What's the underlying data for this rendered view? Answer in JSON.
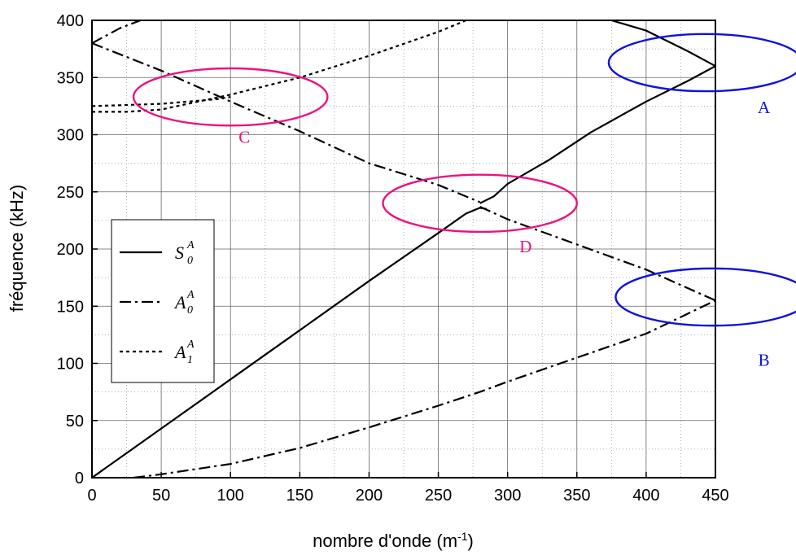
{
  "chart_data": {
    "type": "line",
    "xlabel_main": "nombre d'onde (m",
    "xlabel_sup": "-1",
    "xlabel_end": ")",
    "ylabel": "fréquence (kHz)",
    "xlim": [
      0,
      450
    ],
    "ylim": [
      0,
      400
    ],
    "xticks": [
      "0",
      "50",
      "100",
      "150",
      "200",
      "250",
      "300",
      "350",
      "400",
      "450"
    ],
    "yticks": [
      "0",
      "50",
      "100",
      "150",
      "200",
      "250",
      "300",
      "350",
      "400"
    ],
    "grid": true,
    "legend_position": "left-middle",
    "series": [
      {
        "id": "S0",
        "style": "solid",
        "legend": {
          "base": "S",
          "sub": "0",
          "sup": "A"
        },
        "segments": [
          [
            [
              0,
              0
            ],
            [
              50,
              43
            ],
            [
              100,
              86
            ],
            [
              150,
              129
            ],
            [
              200,
              172
            ],
            [
              250,
              214
            ],
            [
              270,
              231
            ],
            [
              280,
              236
            ],
            [
              285,
              235
            ]
          ],
          [
            [
              280,
              240
            ],
            [
              290,
              246
            ],
            [
              300,
              257
            ],
            [
              330,
              278
            ],
            [
              360,
              302
            ],
            [
              400,
              329
            ],
            [
              430,
              347
            ],
            [
              450,
              360
            ]
          ],
          [
            [
              375,
              400
            ],
            [
              400,
              391
            ],
            [
              430,
              373
            ],
            [
              450,
              360
            ]
          ]
        ]
      },
      {
        "id": "A0",
        "style": "dashdot",
        "legend": {
          "base": "A",
          "sub": "0",
          "sup": "A"
        },
        "segments": [
          [
            [
              30,
              0
            ],
            [
              50,
              3
            ],
            [
              100,
              12
            ],
            [
              150,
              26
            ],
            [
              200,
              44
            ],
            [
              250,
              63
            ],
            [
              280,
              75
            ],
            [
              300,
              84
            ],
            [
              350,
              105
            ],
            [
              400,
              126
            ],
            [
              450,
              155
            ]
          ],
          [
            [
              0,
              380
            ],
            [
              50,
              356
            ],
            [
              100,
              329
            ],
            [
              150,
              303
            ],
            [
              200,
              275
            ],
            [
              250,
              256
            ],
            [
              280,
              241
            ]
          ],
          [
            [
              280,
              237
            ],
            [
              300,
              226
            ],
            [
              350,
              204
            ],
            [
              400,
              182
            ],
            [
              450,
              155
            ]
          ],
          [
            [
              0,
              380
            ],
            [
              20,
              393
            ],
            [
              35,
              400
            ]
          ]
        ]
      },
      {
        "id": "A1",
        "style": "dotted",
        "legend": {
          "base": "A",
          "sub": "1",
          "sup": "A"
        },
        "segments": [
          [
            [
              0,
              325
            ],
            [
              50,
              327
            ],
            [
              90,
              331
            ],
            [
              100,
              333
            ]
          ],
          [
            [
              0,
              320
            ],
            [
              25,
              320
            ],
            [
              50,
              322
            ],
            [
              100,
              335
            ],
            [
              150,
              350
            ],
            [
              200,
              369
            ],
            [
              250,
              390
            ],
            [
              270,
              400
            ]
          ]
        ]
      }
    ],
    "annotations": [
      {
        "label": "A",
        "color": "#1010e0",
        "cx": 443,
        "cy": 363,
        "rx": 70,
        "ry": 25,
        "lx": 485,
        "ly": 319
      },
      {
        "label": "B",
        "color": "#1010e0",
        "cx": 448,
        "cy": 158,
        "rx": 70,
        "ry": 25,
        "lx": 485,
        "ly": 98
      },
      {
        "label": "C",
        "color": "#ec1280",
        "cx": 100,
        "cy": 333,
        "rx": 70,
        "ry": 25,
        "lx": 110,
        "ly": 293
      },
      {
        "label": "D",
        "color": "#ec1280",
        "cx": 280,
        "cy": 240,
        "rx": 70,
        "ry": 25,
        "lx": 313,
        "ly": 197
      }
    ]
  }
}
